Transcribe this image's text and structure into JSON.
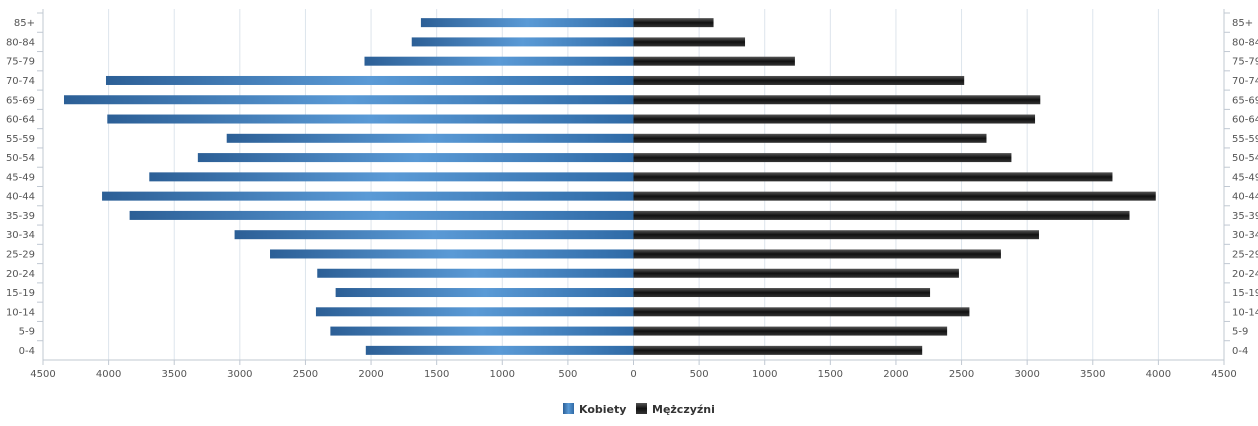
{
  "chart_data": {
    "type": "bar",
    "orientation": "horizontal",
    "categories": [
      "85+",
      "80-84",
      "75-79",
      "70-74",
      "65-69",
      "60-64",
      "55-59",
      "50-54",
      "45-49",
      "40-44",
      "35-39",
      "30-34",
      "25-29",
      "20-24",
      "15-19",
      "10-14",
      "5-9",
      "0-4"
    ],
    "series": [
      {
        "name": "Kobiety",
        "color": "#3f7fbf",
        "side": "left",
        "values": [
          1620,
          1690,
          2050,
          4020,
          4340,
          4010,
          3100,
          3320,
          3690,
          4050,
          3840,
          3040,
          2770,
          2410,
          2270,
          2420,
          2310,
          2040
        ]
      },
      {
        "name": "Mężczyźni",
        "color": "#222222",
        "side": "right",
        "values": [
          610,
          850,
          1230,
          2520,
          3100,
          3060,
          2690,
          2880,
          3650,
          3980,
          3780,
          3090,
          2800,
          2480,
          2260,
          2560,
          2390,
          2200
        ]
      }
    ],
    "xlim": [
      -4500,
      4500
    ],
    "x_ticks": [
      -4500,
      -4000,
      -3500,
      -3000,
      -2500,
      -2000,
      -1500,
      -1000,
      -500,
      0,
      500,
      1000,
      1500,
      2000,
      2500,
      3000,
      3500,
      4000,
      4500
    ],
    "grid": true,
    "legend_position": "bottom-center",
    "title": "",
    "xlabel": "",
    "ylabel": ""
  }
}
